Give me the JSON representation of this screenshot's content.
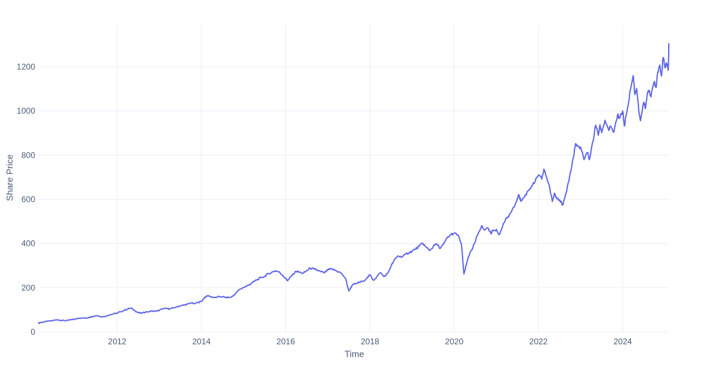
{
  "chart_data": {
    "type": "line",
    "title": "",
    "xlabel": "Time",
    "ylabel": "Share Price",
    "legend": "none",
    "grid": true,
    "background": "#ffffff",
    "line_color": "#5c63e8",
    "grid_color": "#ebeff7",
    "tick_color": "#4a5a78",
    "x_ticks": [
      {
        "value": 2012,
        "label": "2012"
      },
      {
        "value": 2014,
        "label": "2014"
      },
      {
        "value": 2016,
        "label": "2016"
      },
      {
        "value": 2018,
        "label": "2018"
      },
      {
        "value": 2020,
        "label": "2020"
      },
      {
        "value": 2022,
        "label": "2022"
      },
      {
        "value": 2024,
        "label": "2024"
      }
    ],
    "y_ticks": [
      {
        "value": 0,
        "label": "0"
      },
      {
        "value": 200,
        "label": "200"
      },
      {
        "value": 400,
        "label": "400"
      },
      {
        "value": 600,
        "label": "600"
      },
      {
        "value": 800,
        "label": "800"
      },
      {
        "value": 1000,
        "label": "1000"
      },
      {
        "value": 1200,
        "label": "1200"
      }
    ],
    "xlim": [
      2010.13,
      2025.08
    ],
    "ylim": [
      -16,
      1400
    ],
    "series_name": "Share Price",
    "points": [
      [
        2010.13,
        40
      ],
      [
        2010.17,
        42
      ],
      [
        2010.25,
        45
      ],
      [
        2010.33,
        47
      ],
      [
        2010.42,
        50
      ],
      [
        2010.5,
        53
      ],
      [
        2010.58,
        55
      ],
      [
        2010.67,
        52
      ],
      [
        2010.75,
        51
      ],
      [
        2010.83,
        53
      ],
      [
        2010.92,
        55
      ],
      [
        2011.0,
        58
      ],
      [
        2011.08,
        62
      ],
      [
        2011.17,
        64
      ],
      [
        2011.25,
        62
      ],
      [
        2011.33,
        66
      ],
      [
        2011.42,
        70
      ],
      [
        2011.5,
        74
      ],
      [
        2011.58,
        71
      ],
      [
        2011.67,
        68
      ],
      [
        2011.75,
        73
      ],
      [
        2011.83,
        78
      ],
      [
        2011.92,
        82
      ],
      [
        2012.0,
        85
      ],
      [
        2012.08,
        92
      ],
      [
        2012.17,
        98
      ],
      [
        2012.25,
        104
      ],
      [
        2012.33,
        108
      ],
      [
        2012.42,
        96
      ],
      [
        2012.5,
        87
      ],
      [
        2012.58,
        84
      ],
      [
        2012.67,
        90
      ],
      [
        2012.75,
        92
      ],
      [
        2012.83,
        95
      ],
      [
        2012.92,
        93
      ],
      [
        2013.0,
        98
      ],
      [
        2013.08,
        104
      ],
      [
        2013.17,
        106
      ],
      [
        2013.25,
        104
      ],
      [
        2013.33,
        109
      ],
      [
        2013.42,
        114
      ],
      [
        2013.5,
        118
      ],
      [
        2013.58,
        121
      ],
      [
        2013.67,
        126
      ],
      [
        2013.75,
        131
      ],
      [
        2013.83,
        128
      ],
      [
        2013.92,
        133
      ],
      [
        2014.0,
        138
      ],
      [
        2014.08,
        158
      ],
      [
        2014.17,
        163
      ],
      [
        2014.25,
        158
      ],
      [
        2014.33,
        156
      ],
      [
        2014.42,
        160
      ],
      [
        2014.5,
        159
      ],
      [
        2014.58,
        157
      ],
      [
        2014.67,
        156
      ],
      [
        2014.75,
        162
      ],
      [
        2014.83,
        180
      ],
      [
        2014.92,
        194
      ],
      [
        2015.0,
        201
      ],
      [
        2015.08,
        208
      ],
      [
        2015.17,
        218
      ],
      [
        2015.25,
        228
      ],
      [
        2015.33,
        238
      ],
      [
        2015.42,
        246
      ],
      [
        2015.5,
        252
      ],
      [
        2015.58,
        263
      ],
      [
        2015.67,
        270
      ],
      [
        2015.75,
        277
      ],
      [
        2015.83,
        272
      ],
      [
        2015.92,
        258
      ],
      [
        2016.0,
        242
      ],
      [
        2016.04,
        232
      ],
      [
        2016.08,
        240
      ],
      [
        2016.17,
        262
      ],
      [
        2016.25,
        274
      ],
      [
        2016.33,
        270
      ],
      [
        2016.42,
        266
      ],
      [
        2016.5,
        277
      ],
      [
        2016.58,
        288
      ],
      [
        2016.67,
        284
      ],
      [
        2016.75,
        280
      ],
      [
        2016.83,
        272
      ],
      [
        2016.92,
        268
      ],
      [
        2017.0,
        280
      ],
      [
        2017.08,
        285
      ],
      [
        2017.17,
        279
      ],
      [
        2017.25,
        272
      ],
      [
        2017.33,
        265
      ],
      [
        2017.42,
        242
      ],
      [
        2017.5,
        185
      ],
      [
        2017.54,
        200
      ],
      [
        2017.58,
        212
      ],
      [
        2017.67,
        219
      ],
      [
        2017.75,
        224
      ],
      [
        2017.83,
        230
      ],
      [
        2017.92,
        242
      ],
      [
        2018.0,
        258
      ],
      [
        2018.08,
        234
      ],
      [
        2018.17,
        252
      ],
      [
        2018.25,
        268
      ],
      [
        2018.33,
        250
      ],
      [
        2018.42,
        265
      ],
      [
        2018.5,
        298
      ],
      [
        2018.58,
        326
      ],
      [
        2018.67,
        344
      ],
      [
        2018.75,
        338
      ],
      [
        2018.83,
        350
      ],
      [
        2018.92,
        358
      ],
      [
        2019.0,
        366
      ],
      [
        2019.08,
        374
      ],
      [
        2019.17,
        388
      ],
      [
        2019.25,
        402
      ],
      [
        2019.33,
        384
      ],
      [
        2019.42,
        368
      ],
      [
        2019.5,
        386
      ],
      [
        2019.58,
        400
      ],
      [
        2019.67,
        378
      ],
      [
        2019.75,
        398
      ],
      [
        2019.83,
        425
      ],
      [
        2019.92,
        441
      ],
      [
        2020.0,
        447
      ],
      [
        2020.08,
        440
      ],
      [
        2020.17,
        400
      ],
      [
        2020.23,
        262
      ],
      [
        2020.29,
        305
      ],
      [
        2020.33,
        338
      ],
      [
        2020.42,
        372
      ],
      [
        2020.5,
        408
      ],
      [
        2020.58,
        452
      ],
      [
        2020.65,
        480
      ],
      [
        2020.71,
        462
      ],
      [
        2020.79,
        471
      ],
      [
        2020.87,
        446
      ],
      [
        2020.92,
        458
      ],
      [
        2021.0,
        464
      ],
      [
        2021.08,
        441
      ],
      [
        2021.17,
        492
      ],
      [
        2021.25,
        515
      ],
      [
        2021.33,
        536
      ],
      [
        2021.42,
        565
      ],
      [
        2021.5,
        606
      ],
      [
        2021.54,
        620
      ],
      [
        2021.58,
        592
      ],
      [
        2021.67,
        612
      ],
      [
        2021.75,
        638
      ],
      [
        2021.83,
        658
      ],
      [
        2021.92,
        680
      ],
      [
        2022.0,
        710
      ],
      [
        2022.08,
        692
      ],
      [
        2022.13,
        737
      ],
      [
        2022.17,
        712
      ],
      [
        2022.25,
        668
      ],
      [
        2022.33,
        590
      ],
      [
        2022.38,
        628
      ],
      [
        2022.42,
        612
      ],
      [
        2022.5,
        598
      ],
      [
        2022.58,
        574
      ],
      [
        2022.67,
        636
      ],
      [
        2022.75,
        716
      ],
      [
        2022.83,
        790
      ],
      [
        2022.88,
        852
      ],
      [
        2022.92,
        840
      ],
      [
        2023.0,
        836
      ],
      [
        2023.08,
        780
      ],
      [
        2023.17,
        812
      ],
      [
        2023.21,
        780
      ],
      [
        2023.29,
        860
      ],
      [
        2023.36,
        936
      ],
      [
        2023.42,
        890
      ],
      [
        2023.46,
        938
      ],
      [
        2023.5,
        902
      ],
      [
        2023.58,
        958
      ],
      [
        2023.67,
        912
      ],
      [
        2023.71,
        932
      ],
      [
        2023.79,
        904
      ],
      [
        2023.88,
        984
      ],
      [
        2023.92,
        966
      ],
      [
        2024.0,
        1000
      ],
      [
        2024.04,
        932
      ],
      [
        2024.08,
        980
      ],
      [
        2024.13,
        1024
      ],
      [
        2024.17,
        1086
      ],
      [
        2024.25,
        1160
      ],
      [
        2024.29,
        1074
      ],
      [
        2024.33,
        1102
      ],
      [
        2024.38,
        1004
      ],
      [
        2024.42,
        956
      ],
      [
        2024.5,
        1040
      ],
      [
        2024.54,
        1012
      ],
      [
        2024.58,
        1072
      ],
      [
        2024.63,
        1094
      ],
      [
        2024.67,
        1064
      ],
      [
        2024.75,
        1134
      ],
      [
        2024.79,
        1106
      ],
      [
        2024.83,
        1176
      ],
      [
        2024.88,
        1208
      ],
      [
        2024.92,
        1158
      ],
      [
        2024.96,
        1242
      ],
      [
        2025.0,
        1198
      ],
      [
        2025.04,
        1218
      ],
      [
        2025.08,
        1184
      ],
      [
        2025.1,
        1305
      ]
    ]
  }
}
